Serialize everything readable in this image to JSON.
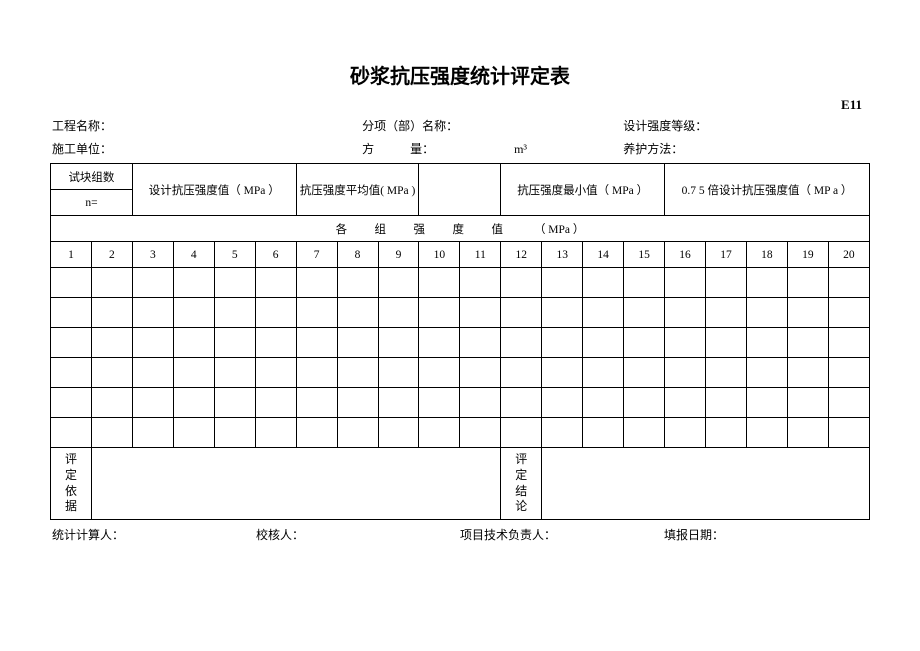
{
  "doc": {
    "title": "砂浆抗压强度统计评定表",
    "code": "E11"
  },
  "meta": {
    "row1": {
      "project_label": "工程名称：",
      "subitem_label": "分项（部）名称：",
      "design_grade_label": "设计强度等级："
    },
    "row2": {
      "unit_label": "施工单位：",
      "volume_label": "方　　　量：",
      "volume_unit": "m³",
      "cure_label": "养护方法："
    }
  },
  "header_cells": {
    "groups": "试块组数",
    "n_eq": "n=",
    "design_val": "设计抗压强度值（ MPa ）",
    "avg_val": "抗压强度平均值( MPa )",
    "min_val": "抗压强度最小值（ MPa ）",
    "factor_val": "0.7 5 倍设计抗压强度值（ MP a ）"
  },
  "section": {
    "values_title_a": "各　组　强　度　值",
    "values_title_b": "（ MPa ）"
  },
  "columns": [
    "1",
    "2",
    "3",
    "4",
    "5",
    "6",
    "7",
    "8",
    "9",
    "10",
    "11",
    "12",
    "13",
    "14",
    "15",
    "16",
    "17",
    "18",
    "19",
    "20"
  ],
  "bottom": {
    "basis_label": "评\n定\n依\n据",
    "conclusion_label": "评\n定\n结\n论"
  },
  "footer": {
    "calc": "统计计算人：",
    "check": "校核人：",
    "tech": "项目技术负责人：",
    "date": "填报日期："
  }
}
